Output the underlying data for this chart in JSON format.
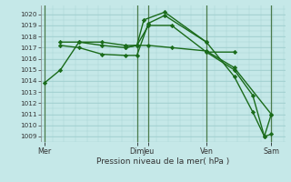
{
  "background_color": "#c5e8e8",
  "grid_color": "#9ecece",
  "line_color": "#1a6b1a",
  "vline_color": "#4a7a4a",
  "title": "Pression niveau de la mer( hPa )",
  "ylim": [
    1008.5,
    1020.8
  ],
  "yticks": [
    1009,
    1010,
    1011,
    1012,
    1013,
    1014,
    1015,
    1016,
    1017,
    1018,
    1019,
    1020
  ],
  "xlim": [
    -0.15,
    10.4
  ],
  "xtick_positions": [
    0,
    4.0,
    4.5,
    7.0,
    9.8
  ],
  "xtick_labels": [
    "Mer",
    "Dim",
    "Jeu",
    "Ven",
    "Sam"
  ],
  "vlines": [
    0,
    4.0,
    4.5,
    7.0,
    9.8
  ],
  "series": [
    {
      "x": [
        0,
        0.7,
        1.5,
        2.5,
        3.5,
        4.0,
        4.5,
        5.5,
        7.0,
        8.2,
        9.8
      ],
      "y": [
        1013.8,
        1015.0,
        1017.5,
        1017.5,
        1017.2,
        1017.2,
        1017.2,
        1017.0,
        1016.7,
        1015.2,
        1011.0
      ]
    },
    {
      "x": [
        0.7,
        1.5,
        2.5,
        3.5,
        4.0,
        4.5,
        5.5,
        7.0,
        8.2
      ],
      "y": [
        1017.5,
        1017.5,
        1017.2,
        1017.0,
        1017.2,
        1019.0,
        1019.0,
        1016.6,
        1016.6
      ]
    },
    {
      "x": [
        0.7,
        1.5,
        2.5,
        3.5,
        4.0,
        4.5,
        5.2,
        7.0
      ],
      "y": [
        1017.2,
        1017.0,
        1016.4,
        1016.3,
        1016.3,
        1019.2,
        1019.9,
        1017.5
      ]
    },
    {
      "x": [
        3.5,
        4.0,
        4.3,
        5.2,
        7.0,
        8.2,
        9.0,
        9.5,
        9.8
      ],
      "y": [
        1017.0,
        1017.2,
        1019.5,
        1020.2,
        1017.5,
        1014.4,
        1011.2,
        1009.0,
        1011.0
      ]
    },
    {
      "x": [
        7.0,
        8.2,
        9.0,
        9.5,
        9.8
      ],
      "y": [
        1016.6,
        1015.0,
        1012.7,
        1009.0,
        1009.2
      ]
    }
  ]
}
